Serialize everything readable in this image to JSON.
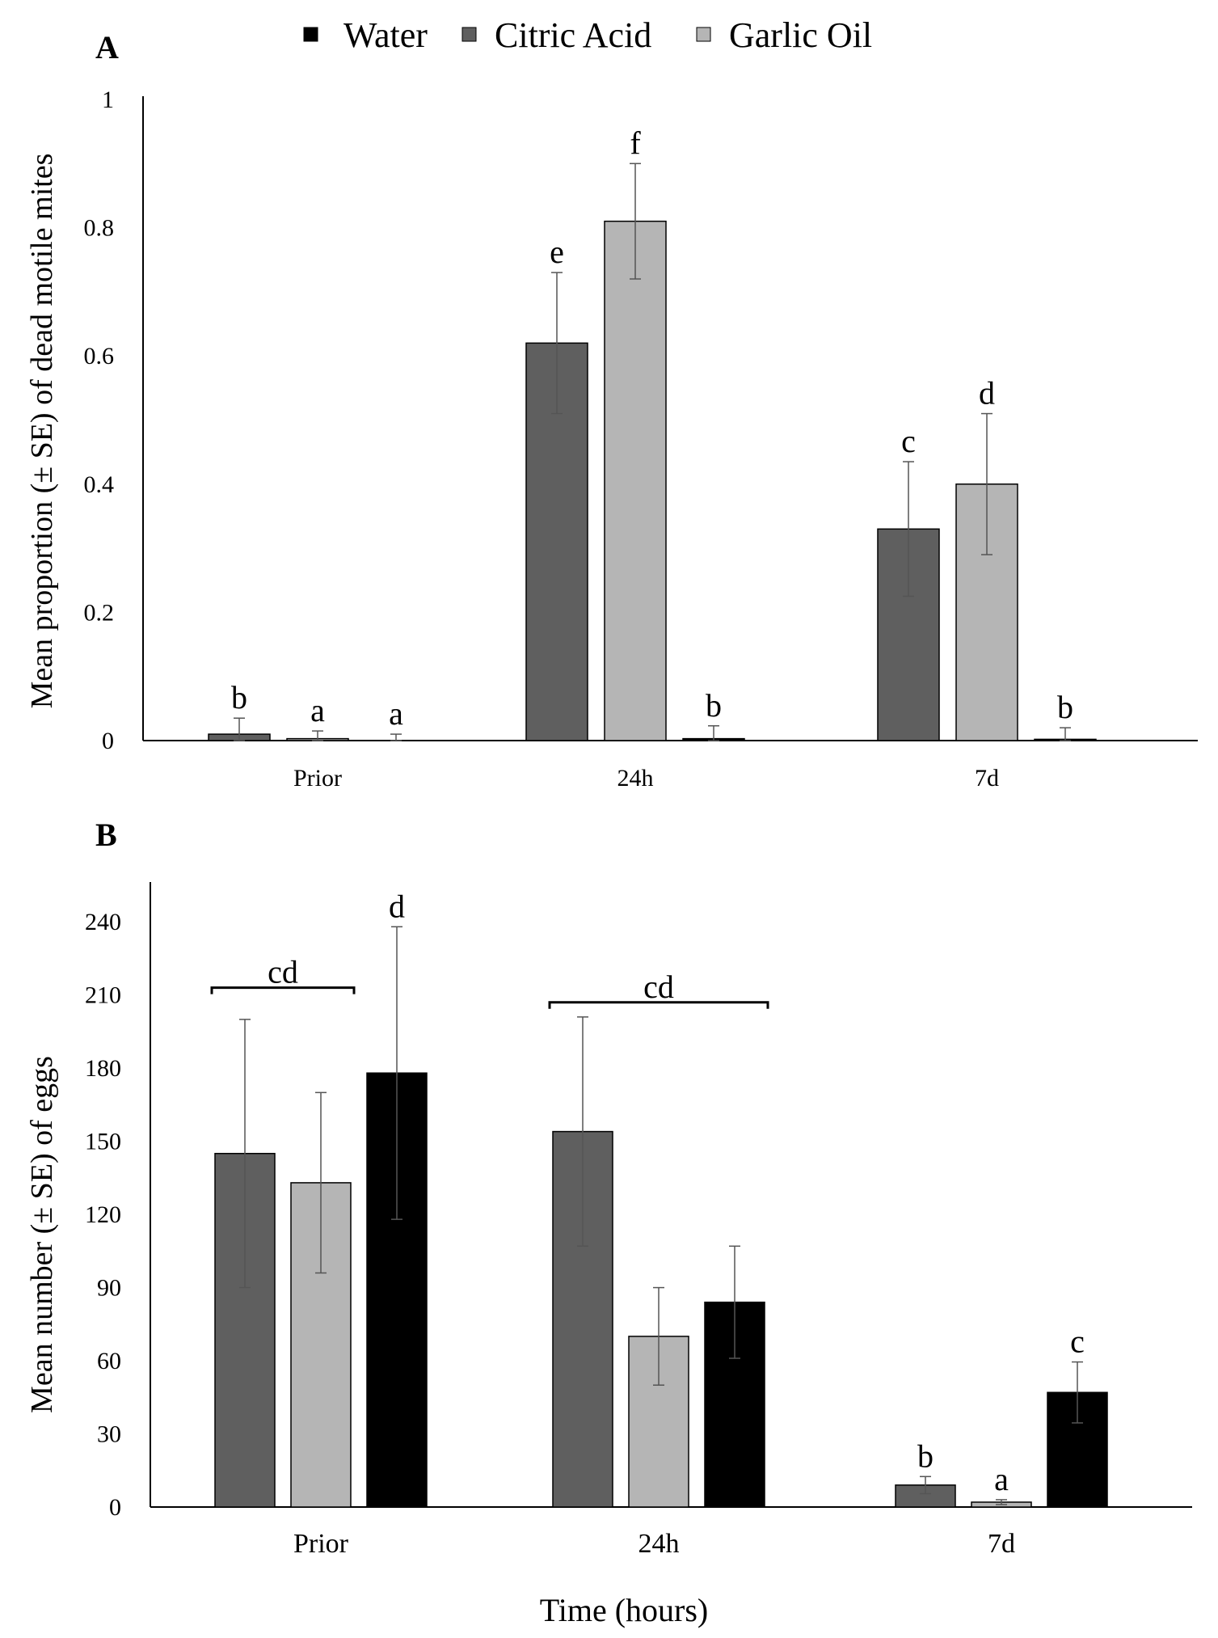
{
  "legend": {
    "items": [
      {
        "name": "Water",
        "color": "#000000"
      },
      {
        "name": "Citric Acid",
        "color": "#5f5f5f"
      },
      {
        "name": "Garlic Oil",
        "color": "#b5b5b5"
      }
    ]
  },
  "x_axis_title": "Time (hours)",
  "colors": {
    "Water": "#000000",
    "Citric Acid": "#5f5f5f",
    "Garlic Oil": "#b5b5b5",
    "axis": "#000000",
    "error_bar": "#555555"
  },
  "chart_data": [
    {
      "type": "bar",
      "panel_label": "A",
      "title": "",
      "xlabel": "",
      "ylabel": "Mean proportion (± SE) of dead motile mites",
      "ylim": [
        0,
        1
      ],
      "yticks": [
        "0",
        "0.2",
        "0.4",
        "0.6",
        "0.8",
        "1"
      ],
      "categories": [
        "Prior",
        "24h",
        "7d"
      ],
      "series": [
        {
          "name": "Citric Acid",
          "values": [
            0.01,
            0.62,
            0.33
          ],
          "errors": [
            0.025,
            0.11,
            0.105
          ],
          "letters": [
            "b",
            "e",
            "c"
          ]
        },
        {
          "name": "Garlic Oil",
          "values": [
            0.003,
            0.81,
            0.4
          ],
          "errors": [
            0.012,
            0.09,
            0.11
          ],
          "letters": [
            "a",
            "f",
            "d"
          ]
        },
        {
          "name": "Water",
          "values": [
            0.0,
            0.003,
            0.002
          ],
          "errors": [
            0.01,
            0.02,
            0.018
          ],
          "letters": [
            "a",
            "b",
            "b"
          ]
        }
      ],
      "annotations": []
    },
    {
      "type": "bar",
      "panel_label": "B",
      "title": "",
      "xlabel": "Time (hours)",
      "ylabel": "Mean number (± SE) of eggs",
      "ylim": [
        0,
        255
      ],
      "yticks": [
        "0",
        "30",
        "60",
        "90",
        "120",
        "150",
        "180",
        "210",
        "240"
      ],
      "categories": [
        "Prior",
        "24h",
        "7d"
      ],
      "series": [
        {
          "name": "Citric Acid",
          "values": [
            145,
            154,
            9
          ],
          "errors": [
            55,
            47,
            3.5
          ],
          "letters": [
            "",
            "",
            "b"
          ]
        },
        {
          "name": "Garlic Oil",
          "values": [
            133,
            70,
            2
          ],
          "errors": [
            37,
            20,
            1
          ],
          "letters": [
            "",
            "",
            "a"
          ]
        },
        {
          "name": "Water",
          "values": [
            178,
            84,
            47
          ],
          "errors": [
            60,
            23,
            12.5
          ],
          "letters": [
            "d",
            "",
            "c"
          ]
        }
      ],
      "annotations": [
        {
          "text": "cd",
          "from": [
            "Prior",
            "Citric Acid"
          ],
          "to": [
            "Prior",
            "Garlic Oil"
          ],
          "y": 213
        },
        {
          "text": "cd",
          "from": [
            "24h",
            "Citric Acid"
          ],
          "to": [
            "24h",
            "Water"
          ],
          "y": 207
        }
      ]
    }
  ]
}
